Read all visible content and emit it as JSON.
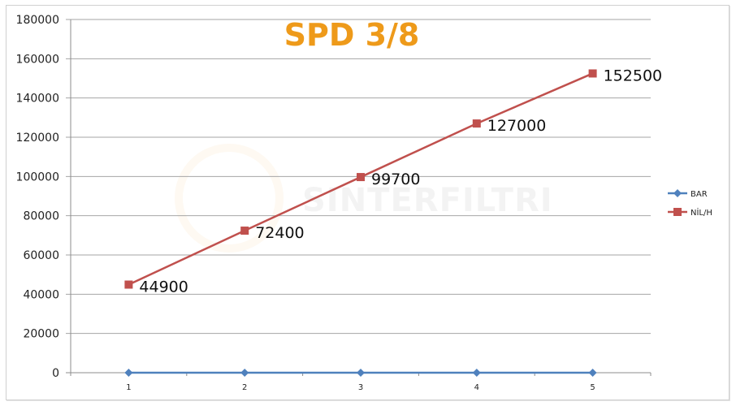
{
  "chart_data": {
    "type": "line",
    "title": "SPD 3/8",
    "xlabel": "",
    "ylabel": "",
    "categories": [
      "1",
      "2",
      "3",
      "4",
      "5"
    ],
    "series": [
      {
        "name": "BAR",
        "values": [
          0,
          0,
          0,
          0,
          0
        ],
        "color": "#4F81BD",
        "marker": "diamond",
        "show_labels": false
      },
      {
        "name": "NİL/H",
        "values": [
          44900,
          72400,
          99700,
          127000,
          152500
        ],
        "color": "#C0504D",
        "marker": "square",
        "show_labels": true
      }
    ],
    "ylim": [
      0,
      180000
    ],
    "yticks": [
      0,
      20000,
      40000,
      60000,
      80000,
      100000,
      120000,
      140000,
      160000,
      180000
    ],
    "ytick_labels": [
      "0",
      "20000",
      "40000",
      "60000",
      "80000",
      "100000",
      "120000",
      "140000",
      "160000",
      "180000"
    ],
    "grid": true,
    "legend_position": "right",
    "watermark": "SINTERFILTRI"
  },
  "colors": {
    "title": "#EE9A1A",
    "grid": "#a6a6a6",
    "axis": "#8c8c8c"
  }
}
